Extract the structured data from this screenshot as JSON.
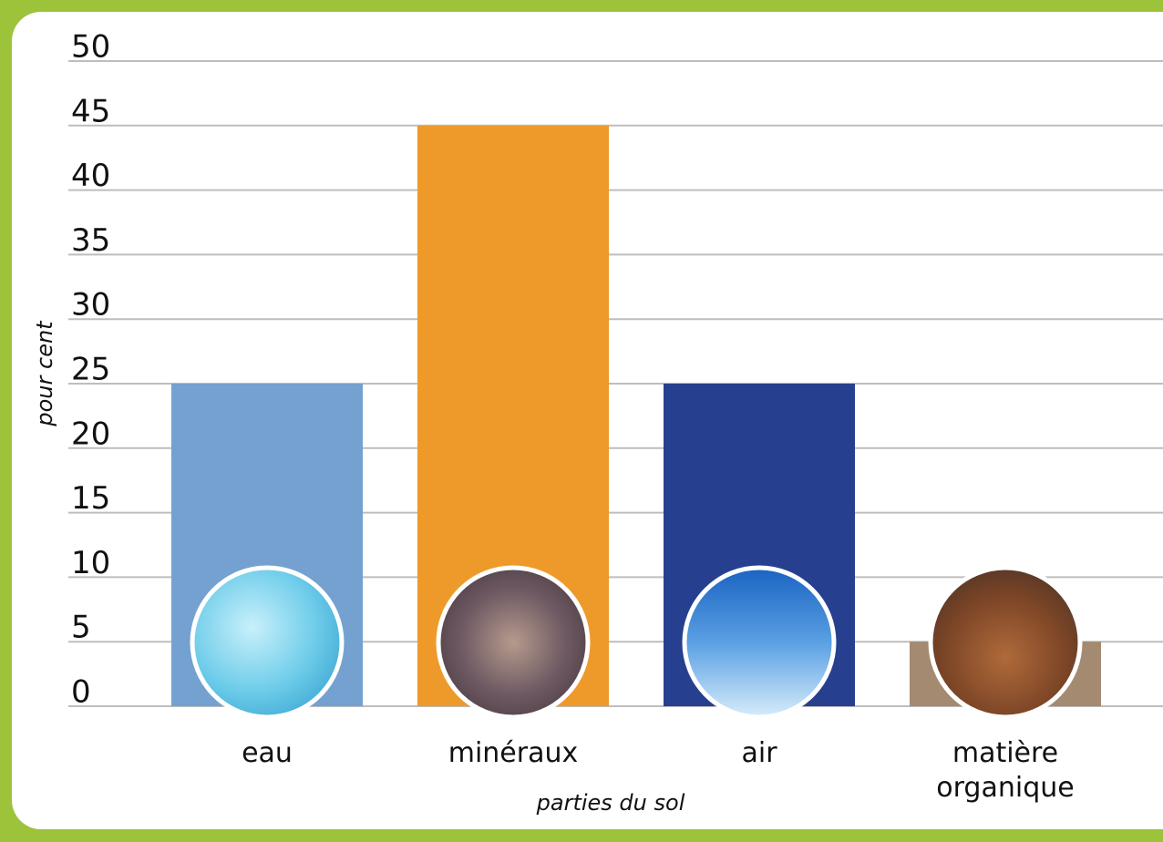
{
  "chart_data": {
    "type": "bar",
    "categories": [
      "eau",
      "minéraux",
      "air",
      "matière organique"
    ],
    "values": [
      25,
      45,
      25,
      5
    ],
    "colors": [
      "#74a1d0",
      "#ee9a2a",
      "#26408f",
      "#a38a70"
    ],
    "ylim": [
      0,
      50
    ],
    "yticks": [
      0,
      5,
      10,
      15,
      20,
      25,
      30,
      35,
      40,
      45,
      50
    ],
    "ylabel": "pour cent",
    "xlabel": "parties du sol",
    "grid": true
  }
}
